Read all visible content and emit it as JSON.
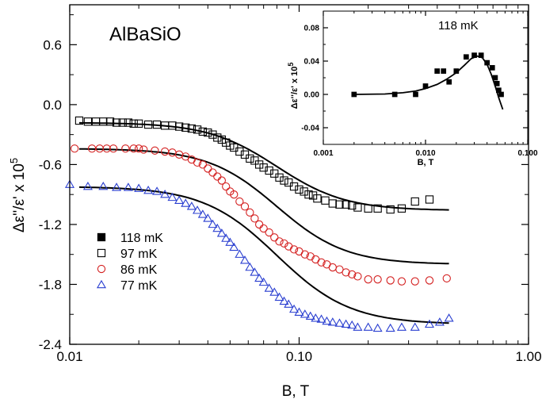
{
  "chart_data": [
    {
      "type": "scatter",
      "title": "AlBaSiO",
      "xlabel": "B, T",
      "ylabel": "Δε''/ε' x 10⁵",
      "ylabel_main": "Δε''/ε' x 10",
      "ylabel_sup": "5",
      "x_scale": "log",
      "xlim": [
        0.01,
        1.0
      ],
      "ylim": [
        -2.4,
        1.0
      ],
      "x_ticks": [
        0.01,
        0.1,
        1.0
      ],
      "x_tick_labels": [
        "0.01",
        "0.10",
        "1.00"
      ],
      "y_ticks": [
        0.6,
        0.0,
        -0.6,
        -1.2,
        -1.8,
        -2.4
      ],
      "y_tick_labels": [
        "0.6",
        "0.0",
        "-0.6",
        "-1.2",
        "-1.8",
        "-2.4"
      ],
      "grid": false,
      "legend_position": "lower-left",
      "legend": [
        {
          "label": "118 mK",
          "marker": "filled-square",
          "color": "#000000"
        },
        {
          "label": "97 mK",
          "marker": "open-square",
          "color": "#000000"
        },
        {
          "label": "86 mK",
          "marker": "open-circle",
          "color": "#d42020"
        },
        {
          "label": "77 mK",
          "marker": "open-triangle",
          "color": "#2a3fd0"
        }
      ],
      "series": [
        {
          "name": "97 mK",
          "marker": "square",
          "color": "#000000",
          "x": [
            0.011,
            0.012,
            0.013,
            0.014,
            0.015,
            0.016,
            0.017,
            0.018,
            0.019,
            0.02,
            0.022,
            0.024,
            0.026,
            0.028,
            0.03,
            0.032,
            0.034,
            0.036,
            0.038,
            0.04,
            0.042,
            0.044,
            0.046,
            0.048,
            0.05,
            0.052,
            0.055,
            0.058,
            0.061,
            0.064,
            0.067,
            0.07,
            0.074,
            0.078,
            0.082,
            0.086,
            0.09,
            0.095,
            0.1,
            0.105,
            0.11,
            0.115,
            0.12,
            0.13,
            0.14,
            0.15,
            0.16,
            0.17,
            0.18,
            0.2,
            0.22,
            0.25,
            0.28,
            0.32,
            0.37
          ],
          "y": [
            -0.16,
            -0.17,
            -0.17,
            -0.17,
            -0.17,
            -0.18,
            -0.18,
            -0.18,
            -0.19,
            -0.19,
            -0.2,
            -0.2,
            -0.21,
            -0.21,
            -0.22,
            -0.23,
            -0.24,
            -0.25,
            -0.27,
            -0.28,
            -0.3,
            -0.33,
            -0.35,
            -0.38,
            -0.41,
            -0.43,
            -0.47,
            -0.5,
            -0.54,
            -0.56,
            -0.6,
            -0.63,
            -0.66,
            -0.69,
            -0.73,
            -0.76,
            -0.78,
            -0.82,
            -0.85,
            -0.87,
            -0.9,
            -0.91,
            -0.94,
            -0.96,
            -0.99,
            -1.0,
            -1.0,
            -1.01,
            -1.03,
            -1.04,
            -1.04,
            -1.05,
            -1.04,
            -0.97,
            -0.95
          ]
        },
        {
          "name": "86 mK",
          "marker": "circle",
          "color": "#d42020",
          "x": [
            0.0105,
            0.0125,
            0.0135,
            0.0145,
            0.0155,
            0.0175,
            0.019,
            0.02,
            0.021,
            0.0235,
            0.026,
            0.028,
            0.03,
            0.032,
            0.034,
            0.036,
            0.038,
            0.04,
            0.042,
            0.044,
            0.046,
            0.048,
            0.05,
            0.052,
            0.055,
            0.058,
            0.061,
            0.064,
            0.067,
            0.07,
            0.074,
            0.078,
            0.082,
            0.086,
            0.09,
            0.095,
            0.1,
            0.106,
            0.112,
            0.118,
            0.125,
            0.132,
            0.14,
            0.15,
            0.16,
            0.17,
            0.18,
            0.2,
            0.22,
            0.25,
            0.28,
            0.32,
            0.37,
            0.44
          ],
          "y": [
            -0.44,
            -0.44,
            -0.44,
            -0.44,
            -0.44,
            -0.44,
            -0.44,
            -0.44,
            -0.45,
            -0.46,
            -0.47,
            -0.48,
            -0.5,
            -0.52,
            -0.55,
            -0.58,
            -0.6,
            -0.64,
            -0.68,
            -0.72,
            -0.76,
            -0.82,
            -0.87,
            -0.9,
            -0.97,
            -1.02,
            -1.08,
            -1.14,
            -1.2,
            -1.24,
            -1.28,
            -1.33,
            -1.37,
            -1.39,
            -1.42,
            -1.45,
            -1.47,
            -1.5,
            -1.52,
            -1.55,
            -1.58,
            -1.6,
            -1.63,
            -1.65,
            -1.68,
            -1.7,
            -1.72,
            -1.75,
            -1.75,
            -1.76,
            -1.77,
            -1.77,
            -1.76,
            -1.74
          ]
        },
        {
          "name": "77 mK",
          "marker": "triangle",
          "color": "#2a3fd0",
          "x": [
            0.01,
            0.012,
            0.014,
            0.016,
            0.018,
            0.02,
            0.022,
            0.024,
            0.026,
            0.028,
            0.03,
            0.032,
            0.034,
            0.036,
            0.038,
            0.04,
            0.042,
            0.044,
            0.046,
            0.048,
            0.05,
            0.052,
            0.055,
            0.058,
            0.061,
            0.064,
            0.067,
            0.07,
            0.074,
            0.078,
            0.082,
            0.086,
            0.09,
            0.095,
            0.1,
            0.106,
            0.112,
            0.118,
            0.125,
            0.132,
            0.14,
            0.15,
            0.16,
            0.17,
            0.18,
            0.2,
            0.22,
            0.25,
            0.28,
            0.32,
            0.37,
            0.41,
            0.45
          ],
          "y": [
            -0.8,
            -0.82,
            -0.82,
            -0.83,
            -0.83,
            -0.84,
            -0.86,
            -0.87,
            -0.9,
            -0.93,
            -0.96,
            -0.99,
            -1.02,
            -1.06,
            -1.1,
            -1.14,
            -1.2,
            -1.24,
            -1.29,
            -1.34,
            -1.38,
            -1.43,
            -1.5,
            -1.56,
            -1.63,
            -1.68,
            -1.74,
            -1.78,
            -1.84,
            -1.88,
            -1.93,
            -1.97,
            -2.0,
            -2.05,
            -2.08,
            -2.1,
            -2.12,
            -2.14,
            -2.15,
            -2.17,
            -2.18,
            -2.19,
            -2.2,
            -2.21,
            -2.23,
            -2.23,
            -2.24,
            -2.24,
            -2.23,
            -2.23,
            -2.2,
            -2.18,
            -2.14
          ]
        }
      ],
      "fit_curves": [
        {
          "color": "#000000",
          "y_start": -0.18,
          "y_end": -1.06,
          "center": 0.08,
          "width": 0.15
        },
        {
          "color": "#000000",
          "y_start": -0.44,
          "y_end": -1.6,
          "center": 0.08,
          "width": 0.15
        },
        {
          "color": "#000000",
          "y_start": -0.82,
          "y_end": -2.2,
          "center": 0.08,
          "width": 0.16
        }
      ],
      "fit_xlim": [
        0.011,
        0.45
      ]
    },
    {
      "type": "scatter",
      "title": "118 mK",
      "xlabel": "B, T",
      "ylabel": "Δε''/ε' x 10⁵",
      "ylabel_main": "Δε''/ε' x 10",
      "ylabel_sup": "5",
      "x_scale": "log",
      "xlim": [
        0.001,
        0.1
      ],
      "ylim": [
        -0.06,
        0.1
      ],
      "x_ticks": [
        0.001,
        0.01,
        0.1
      ],
      "x_tick_labels": [
        "0.001",
        "0.010",
        "0.100"
      ],
      "y_ticks": [
        0.08,
        0.04,
        0.0,
        -0.04
      ],
      "y_tick_labels": [
        "0.08",
        "0.04",
        "0.00",
        "-0.04"
      ],
      "grid": false,
      "series": [
        {
          "name": "118 mK",
          "marker": "filled-square",
          "color": "#000000",
          "x": [
            0.002,
            0.005,
            0.008,
            0.01,
            0.013,
            0.015,
            0.017,
            0.02,
            0.025,
            0.03,
            0.035,
            0.04,
            0.045,
            0.048,
            0.05,
            0.052,
            0.055
          ],
          "y": [
            0.0,
            0.0,
            0.0,
            0.01,
            0.028,
            0.028,
            0.015,
            0.028,
            0.045,
            0.047,
            0.047,
            0.038,
            0.032,
            0.02,
            0.013,
            0.005,
            0.0
          ]
        }
      ],
      "fit_curve": {
        "color": "#000000",
        "x": [
          0.002,
          0.004,
          0.006,
          0.008,
          0.01,
          0.013,
          0.016,
          0.02,
          0.024,
          0.028,
          0.032,
          0.036,
          0.04,
          0.044,
          0.048,
          0.052,
          0.057
        ],
        "y": [
          0.0,
          0.0005,
          0.002,
          0.004,
          0.007,
          0.012,
          0.018,
          0.026,
          0.035,
          0.043,
          0.046,
          0.044,
          0.036,
          0.024,
          0.01,
          -0.004,
          -0.018
        ]
      }
    }
  ]
}
